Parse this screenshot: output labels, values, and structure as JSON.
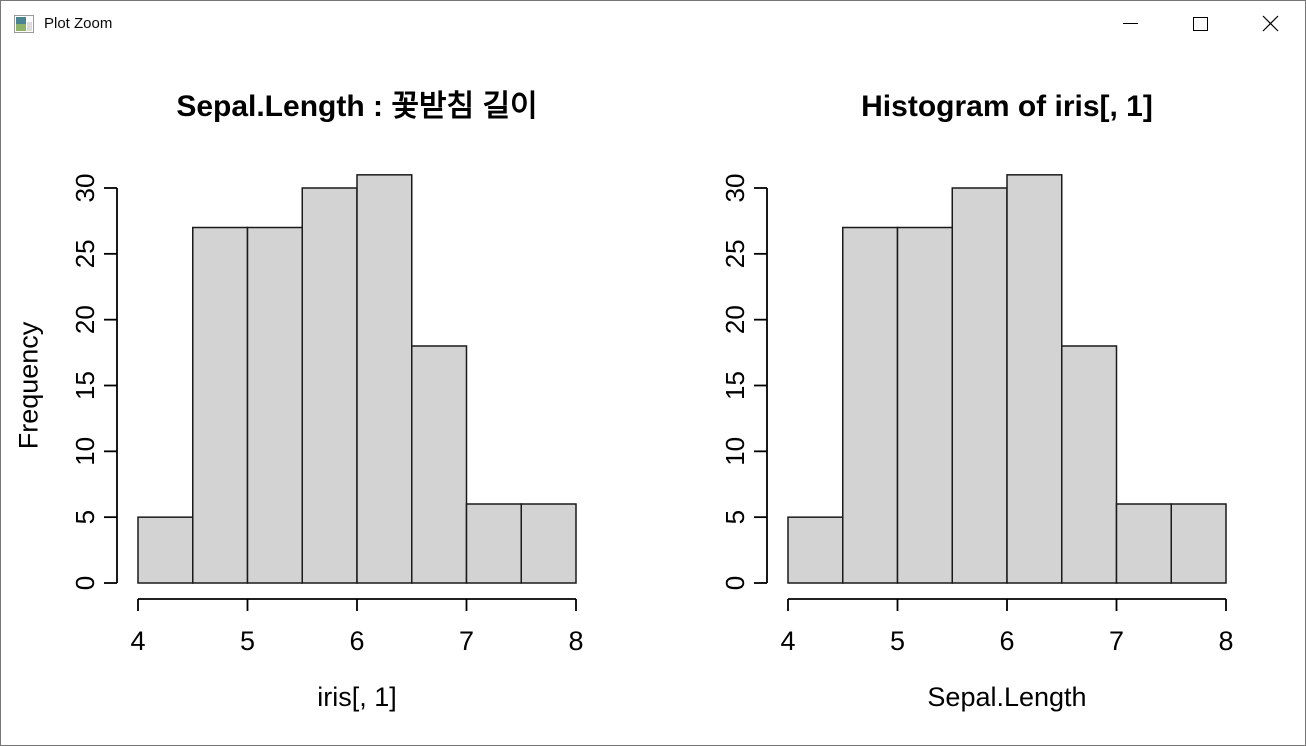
{
  "window": {
    "title": "Plot Zoom",
    "icon": "plot-zoom-icon",
    "controls": [
      {
        "name": "minimize",
        "icon": "minimize-icon"
      },
      {
        "name": "maximize",
        "icon": "maximize-icon"
      },
      {
        "name": "close",
        "icon": "close-icon"
      }
    ]
  },
  "colors": {
    "bar_fill": "#d3d3d3",
    "bar_stroke": "#1a1a1a",
    "axis": "#000000",
    "text": "#000000",
    "titlebar_bg": "#ffffff",
    "window_border": "#767676"
  },
  "chart_data": [
    {
      "type": "bar",
      "chart_kind": "histogram",
      "title": "Sepal.Length : 꽃받침 길이",
      "xlabel": "iris[, 1]",
      "ylabel": "Frequency",
      "bin_breaks": [
        4,
        4.5,
        5,
        5.5,
        6,
        6.5,
        7,
        7.5,
        8
      ],
      "values": [
        5,
        27,
        27,
        30,
        31,
        18,
        6,
        6
      ],
      "xticks": [
        4,
        5,
        6,
        7,
        8
      ],
      "yticks": [
        0,
        5,
        10,
        15,
        20,
        25,
        30
      ],
      "xlim": [
        4,
        8
      ],
      "ylim": [
        0,
        30
      ],
      "grid": false,
      "legend": false
    },
    {
      "type": "bar",
      "chart_kind": "histogram",
      "title": "Histogram of iris[, 1]",
      "xlabel": "Sepal.Length",
      "ylabel": "",
      "bin_breaks": [
        4,
        4.5,
        5,
        5.5,
        6,
        6.5,
        7,
        7.5,
        8
      ],
      "values": [
        5,
        27,
        27,
        30,
        31,
        18,
        6,
        6
      ],
      "xticks": [
        4,
        5,
        6,
        7,
        8
      ],
      "yticks": [
        0,
        5,
        10,
        15,
        20,
        25,
        30
      ],
      "xlim": [
        4,
        8
      ],
      "ylim": [
        0,
        30
      ],
      "grid": false,
      "legend": false
    }
  ]
}
